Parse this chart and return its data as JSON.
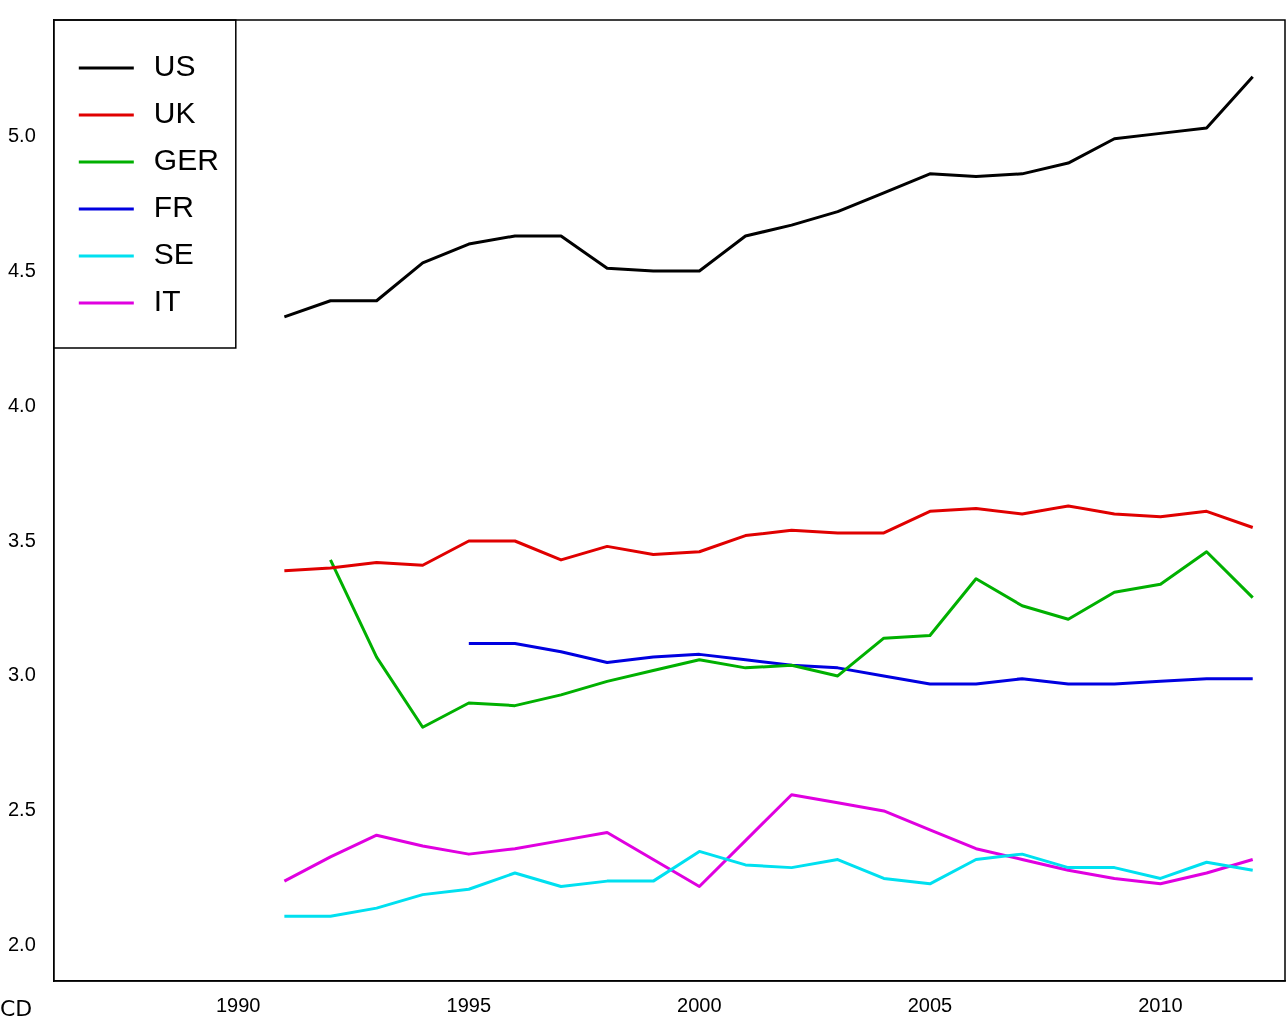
{
  "chart_data": {
    "type": "line",
    "x": [
      1991,
      1992,
      1993,
      1994,
      1995,
      1996,
      1997,
      1998,
      1999,
      2000,
      2001,
      2002,
      2003,
      2004,
      2005,
      2006,
      2007,
      2008,
      2009,
      2010,
      2011,
      2012
    ],
    "series": [
      {
        "name": "US",
        "color": "#000000",
        "values": [
          4.33,
          4.39,
          4.39,
          4.53,
          4.6,
          4.63,
          4.63,
          4.51,
          4.5,
          4.5,
          4.63,
          4.67,
          4.72,
          4.79,
          4.86,
          4.85,
          4.86,
          4.9,
          4.99,
          5.01,
          5.03,
          5.22
        ]
      },
      {
        "name": "UK",
        "color": "#e00000",
        "values": [
          3.39,
          3.4,
          3.42,
          3.41,
          3.5,
          3.5,
          3.43,
          3.48,
          3.45,
          3.46,
          3.52,
          3.54,
          3.53,
          3.53,
          3.61,
          3.62,
          3.6,
          3.63,
          3.6,
          3.59,
          3.61,
          3.55
        ]
      },
      {
        "name": "GER",
        "color": "#00b000",
        "values": [
          null,
          3.43,
          3.07,
          2.81,
          2.9,
          2.89,
          2.93,
          2.98,
          3.02,
          3.06,
          3.03,
          3.04,
          3.0,
          3.14,
          3.15,
          3.36,
          3.26,
          3.21,
          3.31,
          3.34,
          3.46,
          3.29
        ]
      },
      {
        "name": "FR",
        "color": "#0000e0",
        "values": [
          null,
          null,
          null,
          null,
          3.12,
          3.12,
          3.09,
          3.05,
          3.07,
          3.08,
          3.06,
          3.04,
          3.03,
          3.0,
          2.97,
          2.97,
          2.99,
          2.97,
          2.97,
          2.98,
          2.99,
          2.99
        ]
      },
      {
        "name": "SE",
        "color": "#00e0f0",
        "values": [
          2.11,
          2.11,
          2.14,
          2.19,
          2.21,
          2.27,
          2.22,
          2.24,
          2.24,
          2.35,
          2.3,
          2.29,
          2.32,
          2.25,
          2.23,
          2.32,
          2.34,
          2.29,
          2.29,
          2.25,
          2.31,
          2.28
        ]
      },
      {
        "name": "IT",
        "color": "#e000e0",
        "values": [
          2.24,
          2.33,
          2.41,
          2.37,
          2.34,
          2.36,
          2.39,
          2.42,
          2.32,
          2.22,
          2.39,
          2.56,
          2.53,
          2.5,
          2.43,
          2.36,
          2.32,
          2.28,
          2.25,
          2.23,
          2.27,
          2.32
        ]
      }
    ],
    "xlim": [
      1986,
      2012.7
    ],
    "xticks": [
      1990,
      1995,
      2000,
      2005,
      2010
    ],
    "ylim": [
      1.87,
      5.43
    ],
    "yticks": [
      {
        "value": 2,
        "label": "2.0"
      },
      {
        "value": 2.5,
        "label": "2.5"
      },
      {
        "value": 3,
        "label": "3.0"
      },
      {
        "value": 3.5,
        "label": "3.5"
      },
      {
        "value": 4,
        "label": "4.0"
      },
      {
        "value": 4.5,
        "label": "4.5"
      },
      {
        "value": 5,
        "label": "5.0"
      }
    ],
    "grid": false,
    "legend": "top left",
    "marker": "none",
    "line_style": "solid",
    "annotations": [
      "CD"
    ]
  }
}
